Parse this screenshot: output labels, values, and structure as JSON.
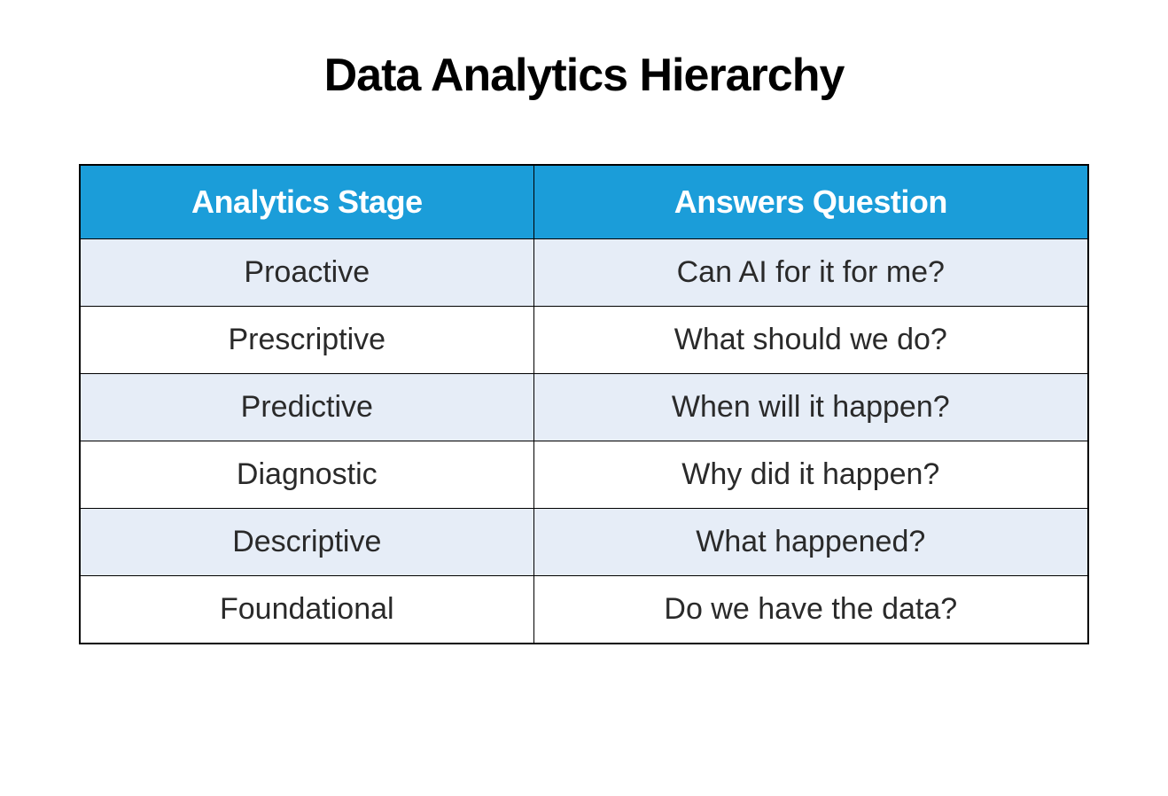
{
  "title": "Data Analytics Hierarchy",
  "table": {
    "type": "table",
    "header_bg_color": "#1B9DD9",
    "header_text_color": "#ffffff",
    "odd_row_bg_color": "#E6EDF7",
    "even_row_bg_color": "#ffffff",
    "border_color": "#000000",
    "cell_text_color": "#2a2a2a",
    "title_fontsize": 52,
    "header_fontsize": 36,
    "cell_fontsize": 34,
    "columns": [
      "Analytics Stage",
      "Answers Question"
    ],
    "column_widths": [
      "45%",
      "55%"
    ],
    "rows": [
      {
        "stage": "Proactive",
        "question": "Can AI for it for me?"
      },
      {
        "stage": "Prescriptive",
        "question": "What should we do?"
      },
      {
        "stage": "Predictive",
        "question": "When will it happen?"
      },
      {
        "stage": "Diagnostic",
        "question": "Why did it happen?"
      },
      {
        "stage": "Descriptive",
        "question": "What happened?"
      },
      {
        "stage": "Foundational",
        "question": "Do we have the data?"
      }
    ]
  }
}
